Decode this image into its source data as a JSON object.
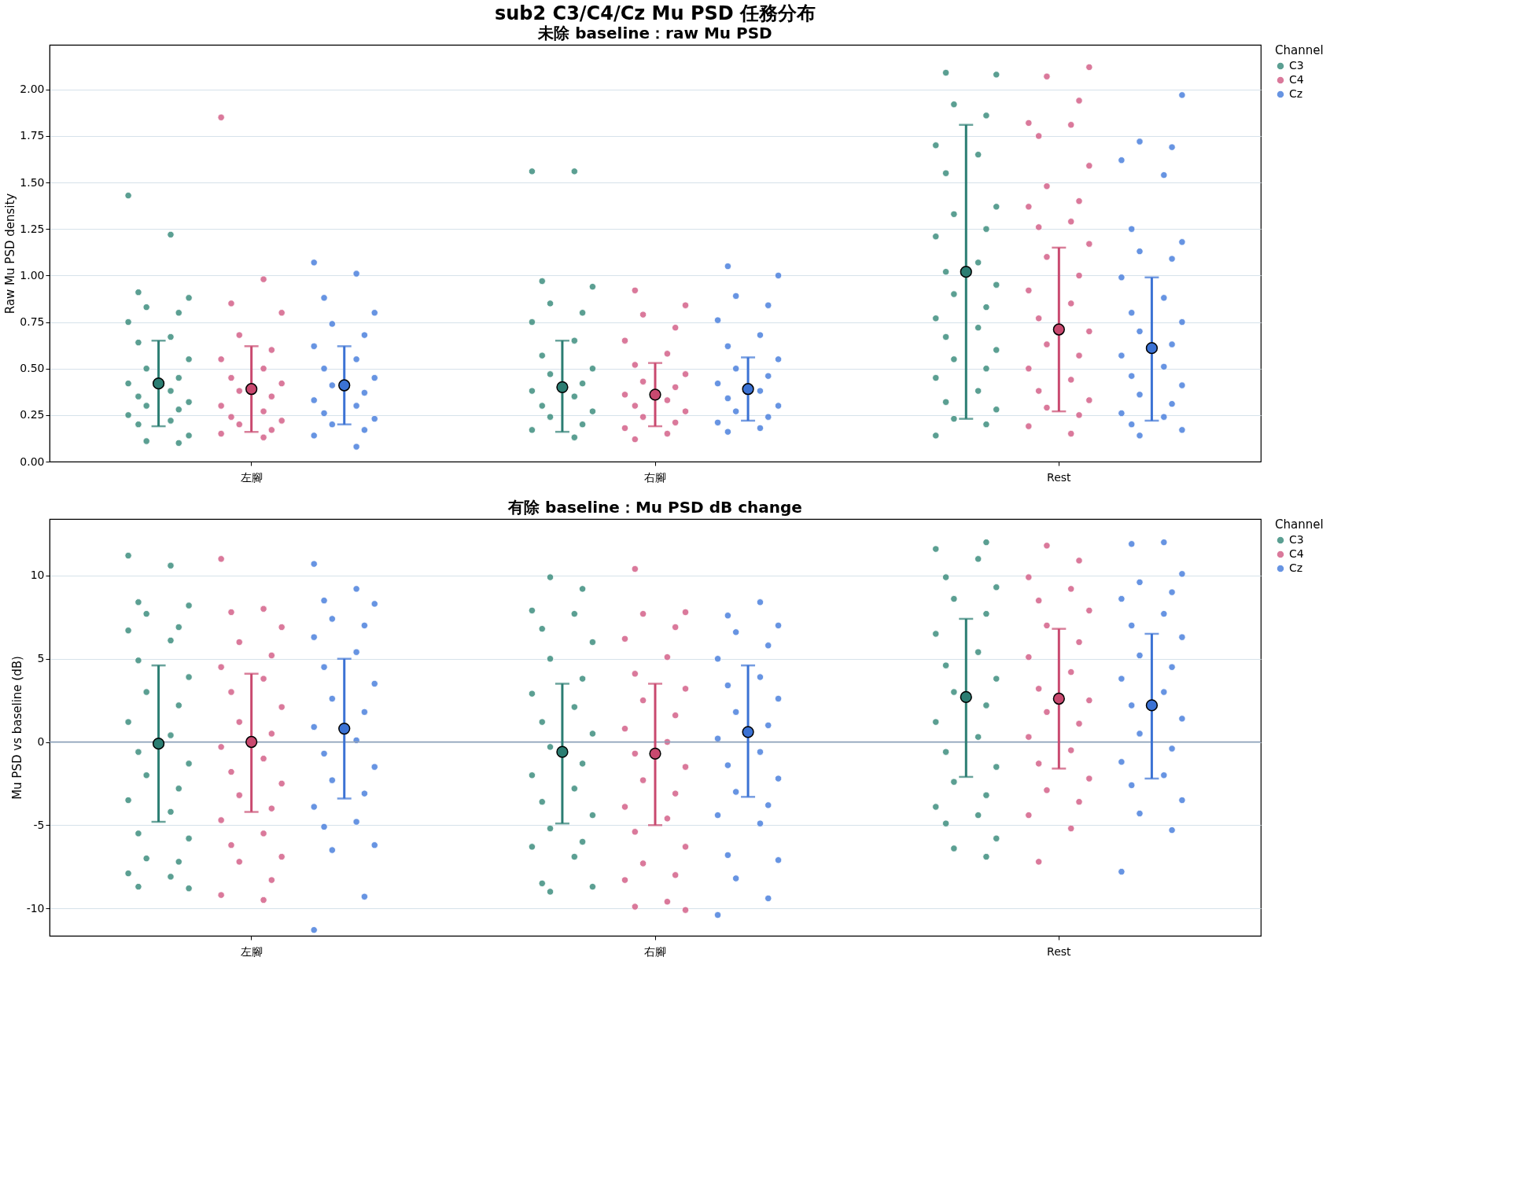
{
  "chart_data": [
    {
      "type": "scatter",
      "title": "sub2 C3/C4/Cz Mu PSD 任務分布",
      "subtitle": "未除 baseline：raw Mu PSD",
      "ylabel": "Raw Mu PSD density",
      "categories": [
        "左腳",
        "右腳",
        "Rest"
      ],
      "ylim": [
        0,
        2.24
      ],
      "yticks": [
        {
          "value": 0,
          "label": "0.00"
        },
        {
          "value": 0.25,
          "label": "0.25"
        },
        {
          "value": 0.5,
          "label": "0.50"
        },
        {
          "value": 0.75,
          "label": "0.75"
        },
        {
          "value": 1,
          "label": "1.00"
        },
        {
          "value": 1.25,
          "label": "1.25"
        },
        {
          "value": 1.5,
          "label": "1.50"
        },
        {
          "value": 1.75,
          "label": "1.75"
        },
        {
          "value": 2,
          "label": "2.00"
        }
      ],
      "grid": "y",
      "legend": "top right",
      "legend_title": "Channel",
      "series": [
        {
          "name": "C3",
          "color": "#3f8f80",
          "x": [
            "左腳",
            "左腳",
            "左腳",
            "左腳",
            "左腳",
            "左腳",
            "左腳",
            "左腳",
            "左腳",
            "左腳",
            "左腳",
            "左腳",
            "左腳",
            "左腳",
            "左腳",
            "左腳",
            "左腳",
            "左腳",
            "左腳",
            "左腳",
            "左腳",
            "左腳",
            "左腳",
            "左腳",
            "右腳",
            "右腳",
            "右腳",
            "右腳",
            "右腳",
            "右腳",
            "右腳",
            "右腳",
            "右腳",
            "右腳",
            "右腳",
            "右腳",
            "右腳",
            "右腳",
            "右腳",
            "右腳",
            "右腳",
            "右腳",
            "右腳",
            "右腳",
            "Rest",
            "Rest",
            "Rest",
            "Rest",
            "Rest",
            "Rest",
            "Rest",
            "Rest",
            "Rest",
            "Rest",
            "Rest",
            "Rest",
            "Rest",
            "Rest",
            "Rest",
            "Rest",
            "Rest",
            "Rest",
            "Rest",
            "Rest",
            "Rest",
            "Rest",
            "Rest",
            "Rest",
            "Rest",
            "Rest",
            "Rest",
            "Rest",
            "Rest"
          ],
          "values": [
            1.43,
            1.22,
            0.91,
            0.88,
            0.83,
            0.8,
            0.75,
            0.67,
            0.64,
            0.55,
            0.5,
            0.45,
            0.42,
            0.38,
            0.35,
            0.32,
            0.3,
            0.28,
            0.25,
            0.22,
            0.2,
            0.14,
            0.11,
            0.1,
            1.56,
            1.56,
            0.97,
            0.94,
            0.85,
            0.8,
            0.75,
            0.65,
            0.57,
            0.5,
            0.47,
            0.42,
            0.38,
            0.35,
            0.3,
            0.27,
            0.24,
            0.2,
            0.17,
            0.13,
            2.09,
            2.08,
            1.92,
            1.86,
            1.7,
            1.65,
            1.55,
            1.37,
            1.33,
            1.25,
            1.21,
            1.07,
            1.02,
            0.95,
            0.9,
            0.83,
            0.77,
            0.72,
            0.67,
            0.6,
            0.55,
            0.5,
            0.45,
            0.38,
            0.32,
            0.28,
            0.23,
            0.2,
            0.14
          ]
        },
        {
          "name": "C4",
          "color": "#d4628a",
          "x": [
            "左腳",
            "左腳",
            "左腳",
            "左腳",
            "左腳",
            "左腳",
            "左腳",
            "左腳",
            "左腳",
            "左腳",
            "左腳",
            "左腳",
            "左腳",
            "左腳",
            "左腳",
            "左腳",
            "左腳",
            "左腳",
            "左腳",
            "左腳",
            "右腳",
            "右腳",
            "右腳",
            "右腳",
            "右腳",
            "右腳",
            "右腳",
            "右腳",
            "右腳",
            "右腳",
            "右腳",
            "右腳",
            "右腳",
            "右腳",
            "右腳",
            "右腳",
            "右腳",
            "右腳",
            "右腳",
            "Rest",
            "Rest",
            "Rest",
            "Rest",
            "Rest",
            "Rest",
            "Rest",
            "Rest",
            "Rest",
            "Rest",
            "Rest",
            "Rest",
            "Rest",
            "Rest",
            "Rest",
            "Rest",
            "Rest",
            "Rest",
            "Rest",
            "Rest",
            "Rest",
            "Rest",
            "Rest",
            "Rest",
            "Rest",
            "Rest",
            "Rest",
            "Rest",
            "Rest"
          ],
          "values": [
            1.85,
            0.98,
            0.85,
            0.8,
            0.68,
            0.6,
            0.55,
            0.5,
            0.45,
            0.42,
            0.38,
            0.35,
            0.3,
            0.27,
            0.24,
            0.22,
            0.2,
            0.17,
            0.15,
            0.13,
            0.92,
            0.84,
            0.79,
            0.72,
            0.65,
            0.58,
            0.52,
            0.47,
            0.43,
            0.4,
            0.36,
            0.33,
            0.3,
            0.27,
            0.24,
            0.21,
            0.18,
            0.15,
            0.12,
            2.12,
            2.07,
            1.94,
            1.82,
            1.81,
            1.75,
            1.59,
            1.48,
            1.4,
            1.37,
            1.29,
            1.26,
            1.17,
            1.1,
            1.0,
            0.92,
            0.85,
            0.77,
            0.7,
            0.63,
            0.57,
            0.5,
            0.44,
            0.38,
            0.33,
            0.29,
            0.25,
            0.19,
            0.15
          ]
        },
        {
          "name": "Cz",
          "color": "#4d82de",
          "x": [
            "左腳",
            "左腳",
            "左腳",
            "左腳",
            "左腳",
            "左腳",
            "左腳",
            "左腳",
            "左腳",
            "左腳",
            "左腳",
            "左腳",
            "左腳",
            "左腳",
            "左腳",
            "左腳",
            "左腳",
            "左腳",
            "左腳",
            "左腳",
            "右腳",
            "右腳",
            "右腳",
            "右腳",
            "右腳",
            "右腳",
            "右腳",
            "右腳",
            "右腳",
            "右腳",
            "右腳",
            "右腳",
            "右腳",
            "右腳",
            "右腳",
            "右腳",
            "右腳",
            "右腳",
            "右腳",
            "Rest",
            "Rest",
            "Rest",
            "Rest",
            "Rest",
            "Rest",
            "Rest",
            "Rest",
            "Rest",
            "Rest",
            "Rest",
            "Rest",
            "Rest",
            "Rest",
            "Rest",
            "Rest",
            "Rest",
            "Rest",
            "Rest",
            "Rest",
            "Rest",
            "Rest",
            "Rest",
            "Rest",
            "Rest",
            "Rest"
          ],
          "values": [
            1.07,
            1.01,
            0.88,
            0.8,
            0.74,
            0.68,
            0.62,
            0.55,
            0.5,
            0.45,
            0.41,
            0.37,
            0.33,
            0.3,
            0.26,
            0.23,
            0.2,
            0.17,
            0.14,
            0.08,
            1.05,
            1.0,
            0.89,
            0.84,
            0.76,
            0.68,
            0.62,
            0.55,
            0.5,
            0.46,
            0.42,
            0.38,
            0.34,
            0.3,
            0.27,
            0.24,
            0.21,
            0.18,
            0.16,
            1.97,
            1.72,
            1.69,
            1.62,
            1.54,
            1.25,
            1.18,
            1.13,
            1.09,
            0.99,
            0.88,
            0.8,
            0.75,
            0.7,
            0.63,
            0.57,
            0.51,
            0.46,
            0.41,
            0.36,
            0.31,
            0.26,
            0.24,
            0.2,
            0.17,
            0.14
          ]
        },
        {
          "color": "#2b7d72",
          "values": [
            0.42,
            0.4,
            1.02
          ],
          "errors": [
            [
              0.19,
              0.65
            ],
            [
              0.16,
              0.65
            ],
            [
              0.23,
              1.81
            ]
          ]
        },
        {
          "color": "#c9496f",
          "values": [
            0.39,
            0.36,
            0.71
          ],
          "errors": [
            [
              0.16,
              0.62
            ],
            [
              0.19,
              0.53
            ],
            [
              0.27,
              1.15
            ]
          ]
        },
        {
          "color": "#3b72d4",
          "values": [
            0.41,
            0.39,
            0.61
          ],
          "errors": [
            [
              0.2,
              0.62
            ],
            [
              0.22,
              0.56
            ],
            [
              0.22,
              0.99
            ]
          ]
        }
      ]
    },
    {
      "type": "scatter",
      "title": "有除 baseline：Mu PSD dB change",
      "ylabel": "Mu PSD vs baseline (dB)",
      "categories": [
        "左腳",
        "右腳",
        "Rest"
      ],
      "ylim": [
        -11.65,
        13.4
      ],
      "yticks": [
        -10,
        -5,
        0,
        5,
        10
      ],
      "grid": "y",
      "legend": "top right",
      "legend_title": "Channel",
      "ref_lines": [
        {
          "axis": "y",
          "value": 0,
          "color": "#8e9fb8"
        }
      ],
      "series": [
        {
          "name": "C3",
          "color": "#3f8f80",
          "x": [
            "左腳",
            "左腳",
            "左腳",
            "左腳",
            "左腳",
            "左腳",
            "左腳",
            "左腳",
            "左腳",
            "左腳",
            "左腳",
            "左腳",
            "左腳",
            "左腳",
            "左腳",
            "左腳",
            "左腳",
            "左腳",
            "左腳",
            "左腳",
            "左腳",
            "左腳",
            "左腳",
            "左腳",
            "左腳",
            "左腳",
            "左腳",
            "左腳",
            "右腳",
            "右腳",
            "右腳",
            "右腳",
            "右腳",
            "右腳",
            "右腳",
            "右腳",
            "右腳",
            "右腳",
            "右腳",
            "右腳",
            "右腳",
            "右腳",
            "右腳",
            "右腳",
            "右腳",
            "右腳",
            "右腳",
            "右腳",
            "右腳",
            "右腳",
            "右腳",
            "右腳",
            "右腳",
            "Rest",
            "Rest",
            "Rest",
            "Rest",
            "Rest",
            "Rest",
            "Rest",
            "Rest",
            "Rest",
            "Rest",
            "Rest",
            "Rest",
            "Rest",
            "Rest",
            "Rest",
            "Rest",
            "Rest",
            "Rest",
            "Rest",
            "Rest",
            "Rest",
            "Rest",
            "Rest",
            "Rest",
            "Rest"
          ],
          "values": [
            11.2,
            10.6,
            8.4,
            8.2,
            7.7,
            6.9,
            6.7,
            6.1,
            4.9,
            3.9,
            3.0,
            2.2,
            1.2,
            0.4,
            -0.6,
            -1.3,
            -2.0,
            -2.8,
            -3.5,
            -4.2,
            -5.5,
            -5.8,
            -7.0,
            -7.2,
            -7.9,
            -8.1,
            -8.7,
            -8.8,
            9.9,
            9.2,
            7.9,
            7.7,
            6.8,
            6.0,
            5.0,
            3.8,
            2.9,
            2.1,
            1.2,
            0.5,
            -0.3,
            -1.3,
            -2.0,
            -2.8,
            -3.6,
            -4.4,
            -5.2,
            -6.0,
            -6.3,
            -6.9,
            -8.5,
            -8.7,
            -9.0,
            12.0,
            11.6,
            11.0,
            9.9,
            9.3,
            8.6,
            7.7,
            6.5,
            5.4,
            4.6,
            3.8,
            3.0,
            2.2,
            1.2,
            0.3,
            -0.6,
            -1.5,
            -2.4,
            -3.2,
            -3.9,
            -4.4,
            -4.9,
            -5.8,
            -6.4,
            -6.9
          ]
        },
        {
          "name": "C4",
          "color": "#d4628a",
          "x": [
            "左腳",
            "左腳",
            "左腳",
            "左腳",
            "左腳",
            "左腳",
            "左腳",
            "左腳",
            "左腳",
            "左腳",
            "左腳",
            "左腳",
            "左腳",
            "左腳",
            "左腳",
            "左腳",
            "左腳",
            "左腳",
            "左腳",
            "左腳",
            "左腳",
            "左腳",
            "左腳",
            "左腳",
            "左腳",
            "左腳",
            "右腳",
            "右腳",
            "右腳",
            "右腳",
            "右腳",
            "右腳",
            "右腳",
            "右腳",
            "右腳",
            "右腳",
            "右腳",
            "右腳",
            "右腳",
            "右腳",
            "右腳",
            "右腳",
            "右腳",
            "右腳",
            "右腳",
            "右腳",
            "右腳",
            "右腳",
            "右腳",
            "右腳",
            "右腳",
            "右腳",
            "Rest",
            "Rest",
            "Rest",
            "Rest",
            "Rest",
            "Rest",
            "Rest",
            "Rest",
            "Rest",
            "Rest",
            "Rest",
            "Rest",
            "Rest",
            "Rest",
            "Rest",
            "Rest",
            "Rest",
            "Rest",
            "Rest",
            "Rest",
            "Rest",
            "Rest",
            "Rest"
          ],
          "values": [
            11.0,
            8.0,
            7.8,
            6.9,
            6.0,
            5.2,
            4.5,
            3.8,
            3.0,
            2.1,
            1.2,
            0.5,
            -0.3,
            -1.0,
            -1.8,
            -2.5,
            -3.2,
            -4.0,
            -4.7,
            -5.5,
            -6.2,
            -6.9,
            -7.2,
            -8.3,
            -9.2,
            -9.5,
            10.4,
            7.8,
            7.7,
            6.9,
            6.2,
            5.1,
            4.1,
            3.2,
            2.5,
            1.6,
            0.8,
            0.0,
            -0.7,
            -1.5,
            -2.3,
            -3.1,
            -3.9,
            -4.6,
            -5.4,
            -6.3,
            -7.3,
            -8.0,
            -8.3,
            -9.6,
            -9.9,
            -10.1,
            11.8,
            10.9,
            9.9,
            9.2,
            8.5,
            7.9,
            7.0,
            6.0,
            5.1,
            4.2,
            3.2,
            2.5,
            1.8,
            1.1,
            0.3,
            -0.5,
            -1.3,
            -2.2,
            -2.9,
            -3.6,
            -4.4,
            -5.2,
            -7.2
          ]
        },
        {
          "name": "Cz",
          "color": "#4d82de",
          "x": [
            "左腳",
            "左腳",
            "左腳",
            "左腳",
            "左腳",
            "左腳",
            "左腳",
            "左腳",
            "左腳",
            "左腳",
            "左腳",
            "左腳",
            "左腳",
            "左腳",
            "左腳",
            "左腳",
            "左腳",
            "左腳",
            "左腳",
            "左腳",
            "左腳",
            "左腳",
            "左腳",
            "左腳",
            "左腳",
            "右腳",
            "右腳",
            "右腳",
            "右腳",
            "右腳",
            "右腳",
            "右腳",
            "右腳",
            "右腳",
            "右腳",
            "右腳",
            "右腳",
            "右腳",
            "右腳",
            "右腳",
            "右腳",
            "右腳",
            "右腳",
            "右腳",
            "右腳",
            "右腳",
            "右腳",
            "右腳",
            "右腳",
            "Rest",
            "Rest",
            "Rest",
            "Rest",
            "Rest",
            "Rest",
            "Rest",
            "Rest",
            "Rest",
            "Rest",
            "Rest",
            "Rest",
            "Rest",
            "Rest",
            "Rest",
            "Rest",
            "Rest",
            "Rest",
            "Rest",
            "Rest",
            "Rest",
            "Rest",
            "Rest",
            "Rest"
          ],
          "values": [
            10.7,
            9.2,
            8.5,
            8.3,
            7.4,
            7.0,
            6.3,
            5.4,
            4.5,
            3.5,
            2.6,
            1.8,
            0.9,
            0.1,
            -0.7,
            -1.5,
            -2.3,
            -3.1,
            -3.9,
            -4.8,
            -5.1,
            -6.2,
            -6.5,
            -9.3,
            -11.3,
            8.4,
            7.6,
            7.0,
            6.6,
            5.8,
            5.0,
            3.9,
            3.4,
            2.6,
            1.8,
            1.0,
            0.2,
            -0.6,
            -1.4,
            -2.2,
            -3.0,
            -3.8,
            -4.4,
            -4.9,
            -6.8,
            -7.1,
            -8.2,
            -9.4,
            -10.4,
            12.0,
            11.9,
            10.1,
            9.6,
            9.0,
            8.6,
            7.7,
            7.0,
            6.3,
            5.2,
            4.5,
            3.8,
            3.0,
            2.2,
            1.4,
            0.5,
            -0.4,
            -1.2,
            -2.0,
            -2.6,
            -3.5,
            -4.3,
            -5.3,
            -7.8
          ]
        },
        {
          "color": "#2b7d72",
          "values": [
            -0.1,
            -0.6,
            2.7
          ],
          "errors": [
            [
              -4.8,
              4.6
            ],
            [
              -4.9,
              3.5
            ],
            [
              -2.1,
              7.4
            ]
          ]
        },
        {
          "color": "#c9496f",
          "values": [
            0.0,
            -0.7,
            2.6
          ],
          "errors": [
            [
              -4.2,
              4.1
            ],
            [
              -5.0,
              3.5
            ],
            [
              -1.6,
              6.8
            ]
          ]
        },
        {
          "color": "#3b72d4",
          "values": [
            0.8,
            0.6,
            2.2
          ],
          "errors": [
            [
              -3.4,
              5.0
            ],
            [
              -3.3,
              4.6
            ],
            [
              -2.2,
              6.5
            ]
          ]
        }
      ]
    }
  ]
}
